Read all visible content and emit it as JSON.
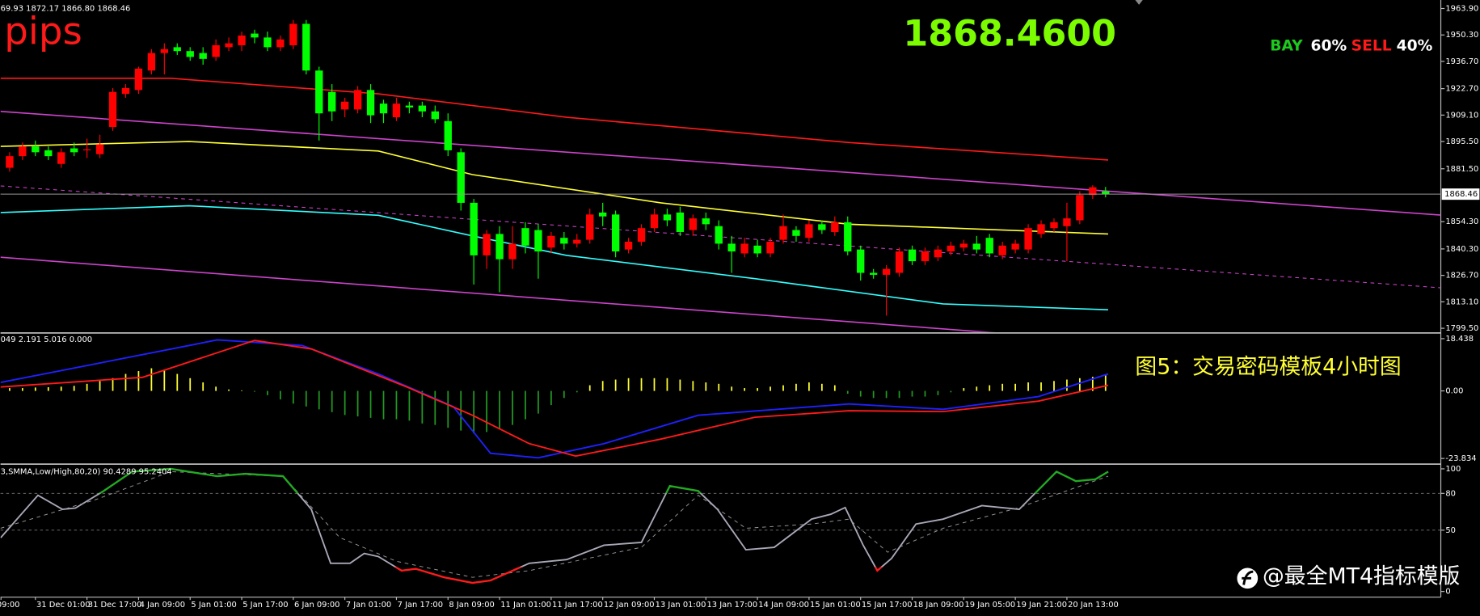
{
  "overlay": {
    "pips": "pips",
    "price": "1868.4600",
    "bay_label": "BAY",
    "bay_pct": "60%",
    "sell_label": "SELL",
    "sell_pct": "40%",
    "caption": "图5：交易密码模板4小时图",
    "watermark": "@最全MT4指标模版"
  },
  "chart_data": [
    {
      "type": "candlestick",
      "title": "69.93 1872.17 1866.80 1868.46",
      "x_labels": [
        "ec 09:00",
        "31 Dec 01:00",
        "31 Dec 17:00",
        "4 Jan 09:00",
        "5 Jan 01:00",
        "5 Jan 17:00",
        "6 Jan 09:00",
        "7 Jan 01:00",
        "7 Jan 17:00",
        "8 Jan 09:00",
        "11 Jan 01:00",
        "11 Jan 17:00",
        "12 Jan 09:00",
        "13 Jan 01:00",
        "13 Jan 17:00",
        "14 Jan 09:00",
        "15 Jan 01:00",
        "15 Jan 17:00",
        "18 Jan 09:00",
        "19 Jan 05:00",
        "19 Jan 21:00",
        "20 Jan 13:00"
      ],
      "open": [
        1882,
        1888,
        1893,
        1891,
        1884,
        1892,
        1891,
        1889,
        1903,
        1920,
        1922,
        1932,
        1941,
        1944,
        1942,
        1941,
        1939,
        1944,
        1945,
        1951,
        1949,
        1944,
        1945,
        1956,
        1932,
        1921,
        1912,
        1912,
        1922,
        1915,
        1908,
        1914,
        1914,
        1911,
        1906,
        1890,
        1864,
        1837,
        1848,
        1835,
        1851,
        1850,
        1841,
        1846,
        1843,
        1845,
        1859,
        1858,
        1840,
        1844,
        1851,
        1858,
        1859,
        1850,
        1856,
        1852,
        1843,
        1838,
        1842,
        1838,
        1845,
        1850,
        1846,
        1853,
        1849,
        1854,
        1840,
        1828,
        1827,
        1828,
        1840,
        1834,
        1836,
        1839,
        1841,
        1843,
        1846,
        1837,
        1840,
        1840,
        1848,
        1851,
        1852,
        1855,
        1868,
        1869.93
      ],
      "high": [
        1890,
        1895,
        1896,
        1893,
        1892,
        1895,
        1897,
        1899,
        1923,
        1925,
        1934,
        1943,
        1946,
        1946,
        1944,
        1944,
        1948,
        1949,
        1952,
        1953,
        1952,
        1950,
        1958,
        1958,
        1934,
        1925,
        1918,
        1924,
        1925,
        1917,
        1918,
        1916,
        1916,
        1914,
        1910,
        1892,
        1866,
        1850,
        1852,
        1852,
        1854,
        1853,
        1849,
        1849,
        1848,
        1861,
        1864,
        1860,
        1846,
        1853,
        1861,
        1861,
        1862,
        1858,
        1859,
        1855,
        1847,
        1846,
        1845,
        1846,
        1858,
        1852,
        1855,
        1855,
        1857,
        1857,
        1842,
        1830,
        1832,
        1841,
        1842,
        1841,
        1842,
        1844,
        1845,
        1847,
        1848,
        1844,
        1845,
        1853,
        1855,
        1856,
        1864,
        1870,
        1873,
        1872.17
      ],
      "low": [
        1880,
        1886,
        1888,
        1886,
        1882,
        1888,
        1887,
        1887,
        1901,
        1918,
        1920,
        1930,
        1930,
        1940,
        1937,
        1935,
        1937,
        1942,
        1942,
        1946,
        1942,
        1942,
        1943,
        1930,
        1896,
        1906,
        1908,
        1910,
        1905,
        1905,
        1906,
        1910,
        1908,
        1905,
        1888,
        1860,
        1822,
        1830,
        1818,
        1830,
        1838,
        1825,
        1838,
        1840,
        1841,
        1843,
        1852,
        1836,
        1838,
        1842,
        1849,
        1852,
        1847,
        1847,
        1850,
        1840,
        1828,
        1836,
        1836,
        1836,
        1843,
        1844,
        1844,
        1848,
        1847,
        1837,
        1824,
        1825,
        1806,
        1826,
        1832,
        1832,
        1834,
        1837,
        1839,
        1838,
        1836,
        1835,
        1838,
        1838,
        1846,
        1849,
        1834,
        1853,
        1866,
        1866.8
      ],
      "close": [
        1888,
        1893,
        1890,
        1888,
        1890,
        1890,
        1891.5,
        1894,
        1921,
        1923,
        1933,
        1941,
        1943,
        1942,
        1939,
        1938,
        1945,
        1946,
        1950,
        1949,
        1944,
        1948,
        1956,
        1932,
        1910,
        1911,
        1916,
        1922,
        1909,
        1910,
        1915,
        1913,
        1911,
        1907,
        1891,
        1864,
        1837,
        1848,
        1835,
        1843,
        1842,
        1839,
        1847,
        1843,
        1845,
        1858,
        1857,
        1839,
        1844,
        1851,
        1858,
        1855,
        1849,
        1856,
        1853,
        1843,
        1839,
        1843,
        1838,
        1844,
        1852,
        1847,
        1853,
        1850,
        1854,
        1839,
        1828,
        1827,
        1830,
        1839,
        1834,
        1839,
        1840,
        1842,
        1843,
        1840,
        1838,
        1842,
        1843,
        1851,
        1853,
        1854,
        1856,
        1868,
        1872,
        1868.46
      ],
      "up_color": "#ff0000",
      "down_color": "#00ff00",
      "lines": [
        {
          "color": "#ff1a1a",
          "x": [
            -0.7,
            12.5,
            28.6,
            43.2,
            65.1,
            85.2
          ],
          "values": [
            1928,
            1928,
            1920,
            1908,
            1895,
            1886
          ]
        },
        {
          "color": "#ffff33",
          "x": [
            -0.7,
            13.9,
            28.6,
            35.9,
            50.5,
            65.1,
            85.2
          ],
          "values": [
            1893,
            1895.5,
            1890.6,
            1878.5,
            1864,
            1853,
            1848
          ]
        },
        {
          "color": "#33ffff",
          "x": [
            -0.7,
            13.9,
            28.6,
            35.9,
            43.2,
            57.8,
            72.4,
            85.2
          ],
          "values": [
            1859,
            1862.5,
            1857.6,
            1847,
            1837,
            1825,
            1812,
            1809
          ]
        },
        {
          "color": "#cc44cc",
          "x": [
            -0.7,
            111
          ],
          "values": [
            1911,
            1857.7
          ]
        },
        {
          "color": "#cc44cc",
          "x": [
            -0.7,
            76.8
          ],
          "values": [
            1836,
            1797
          ]
        },
        {
          "color": "#cc44cc",
          "x": [
            -0.7,
            111
          ],
          "values": [
            1872.7,
            1820.3
          ],
          "dash": true
        }
      ],
      "current_price": {
        "value": 1868.46,
        "label": "1868.46"
      },
      "xlim": [
        -0.707,
        111
      ],
      "ylim": [
        1799.5,
        1963.9
      ],
      "yticks": [
        {
          "value": 1963.9,
          "label": "1963.90"
        },
        {
          "value": 1950.3,
          "label": "1950.30"
        },
        {
          "value": 1936.7,
          "label": "1936.70"
        },
        {
          "value": 1922.7,
          "label": "1922.70"
        },
        {
          "value": 1909.1,
          "label": "1909.10"
        },
        {
          "value": 1895.5,
          "label": "1895.50"
        },
        {
          "value": 1881.5,
          "label": "1881.50"
        },
        {
          "value": 1854.3,
          "label": "1854.30"
        },
        {
          "value": 1840.3,
          "label": "1840.30"
        },
        {
          "value": 1826.7,
          "label": "1826.70"
        },
        {
          "value": 1813.1,
          "label": "1813.10"
        },
        {
          "value": 1799.5,
          "label": "1799.50"
        }
      ],
      "grid": false
    },
    {
      "type": "macd",
      "title": "049 2.191 5.016 0.000",
      "values": [
        1,
        1,
        1.2,
        1.3,
        1.5,
        1.8,
        2.5,
        3.5,
        4.5,
        6,
        7,
        8,
        7.5,
        6,
        4.5,
        3,
        1.5,
        0.5,
        0.2,
        -0.3,
        -1.5,
        -3,
        -4.5,
        -5.5,
        -6.5,
        -7.5,
        -8.5,
        -9,
        -9.5,
        -10,
        -10,
        -10.5,
        -11.5,
        -12,
        -13,
        -14,
        -15,
        -14.5,
        -13.5,
        -12,
        -10,
        -8,
        -5,
        -2.5,
        -0.5,
        2,
        3.5,
        4,
        4.5,
        4.5,
        4.5,
        4.5,
        4,
        3.5,
        3,
        2.5,
        1.5,
        1,
        1,
        1.5,
        2,
        2.5,
        3,
        2.5,
        2,
        -1,
        -2,
        -2.5,
        -2.5,
        -2.5,
        -2,
        -2,
        -1.5,
        -0.5,
        1,
        1.5,
        2,
        2.5,
        2.5,
        3,
        3,
        3.5,
        4,
        4.5,
        5,
        5.5
      ],
      "pos_color": "#ffff33",
      "neg_color": "#229922",
      "lines": [
        {
          "color": "#2020ff",
          "x": [
            -0.7,
            13.9,
            16.1,
            22.7,
            28.6,
            34.4,
            37.3,
            41.0,
            46.1,
            53.4,
            65.1,
            72.4,
            79.8,
            85.2
          ],
          "values": [
            3,
            16,
            18,
            16,
            6,
            -5.5,
            -22,
            -23.6,
            -18.6,
            -8.6,
            -4.6,
            -6.5,
            -2,
            6
          ]
        },
        {
          "color": "#ff1a1a",
          "x": [
            -0.7,
            10.3,
            19.0,
            23.4,
            30.8,
            35.9,
            40.3,
            43.9,
            50.5,
            57.8,
            65.1,
            72.4,
            79.8,
            85.2
          ],
          "values": [
            1.4,
            4.8,
            17.8,
            14.8,
            1.4,
            -8.6,
            -18.6,
            -23,
            -17,
            -9.3,
            -7,
            -7.3,
            -3.6,
            2
          ]
        }
      ],
      "xlim": [
        -0.707,
        111
      ],
      "ylim": [
        -23.834,
        18.438
      ],
      "yticks": [
        18.438,
        {
          "value": 0,
          "label": "0.00"
        },
        -23.834
      ],
      "grid": false
    },
    {
      "type": "line",
      "title": "3,SMMA,Low/High,80,20) 90.4289 95.2404",
      "series": [
        {
          "color": "#a8a8b8",
          "x": [
            -0.7,
            2.2,
            4.1,
            5.1,
            7.3,
            9.5,
            12.5,
            16.1,
            18.3,
            21.2,
            23.4,
            24.9,
            26.4,
            27.5,
            28.6,
            30.4,
            31.5,
            33.7,
            35.9,
            37.3,
            40.3,
            43.2,
            46.1,
            49.0,
            51.2,
            53.4,
            54.9,
            57.1,
            59.3,
            62.2,
            63.7,
            64.8,
            66.2,
            67.3,
            68.4,
            70.3,
            72.4,
            75.4,
            78.3,
            81.2,
            82.7,
            84.2,
            85.2
          ],
          "values": [
            43.8,
            78.5,
            67,
            68,
            82,
            97.7,
            100,
            94,
            96,
            94,
            67,
            23,
            23,
            31,
            28.5,
            17,
            18.5,
            11.5,
            7,
            9,
            23,
            26,
            37.7,
            40,
            86,
            82,
            67,
            34,
            36,
            59,
            63,
            68.5,
            37.7,
            17,
            27,
            55,
            59,
            70,
            67,
            97.7,
            90,
            91.5,
            97.7
          ]
        },
        {
          "color": "#9a9a9a",
          "x": [
            -0.7,
            6.6,
            12.5,
            21.2,
            25.6,
            30.0,
            35.9,
            40.3,
            49.0,
            53.4,
            57.1,
            62.2,
            65.1,
            68.1,
            72.4,
            78.3,
            85.2
          ],
          "values": [
            51.5,
            74.6,
            97.7,
            94,
            44,
            24.6,
            11.5,
            17,
            36,
            78.5,
            51.5,
            55,
            59,
            32,
            51.5,
            68.5,
            94
          ],
          "dash": true
        }
      ],
      "overbought": 80,
      "oversold": 20,
      "overbought_color": "#22aa22",
      "oversold_color": "#ff1a1a",
      "xlim": [
        -0.707,
        111
      ],
      "ylim": [
        0,
        100
      ],
      "yticks": [
        100,
        80,
        50,
        0
      ],
      "grid": true
    }
  ]
}
